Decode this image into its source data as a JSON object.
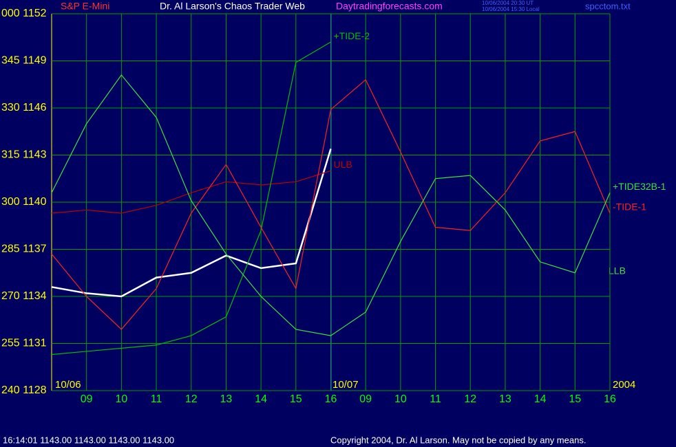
{
  "chart_data": {
    "type": "line",
    "title": "Dr. Al Larson's Chaos Trader Web",
    "subtitle": "S&P E-Mini",
    "site": "Daytradingforecasts.com",
    "timestamps": [
      "10/06/2004 20:30 UT",
      "10/06/2004 15:30 Local"
    ],
    "file": "spcctom.txt",
    "date_labels": [
      "10/06",
      "10/07",
      "2004"
    ],
    "annotations": [
      "LLB"
    ],
    "status": "16:14:01  1143.00 1143.00 1143.00 1143.00",
    "copyright": "Copyright 2004, Dr. Al Larson. May not be copied by any means.",
    "x": [
      0,
      1,
      2,
      3,
      4,
      5,
      6,
      7,
      8,
      9,
      10,
      11,
      12,
      13,
      14,
      15,
      16
    ],
    "xlim": [
      0,
      16
    ],
    "xticks": [
      {
        "value": 1,
        "label": "09"
      },
      {
        "value": 2,
        "label": "10"
      },
      {
        "value": 3,
        "label": "11"
      },
      {
        "value": 4,
        "label": "12"
      },
      {
        "value": 5,
        "label": "13"
      },
      {
        "value": 6,
        "label": "14"
      },
      {
        "value": 7,
        "label": "15"
      },
      {
        "value": 8,
        "label": "16"
      },
      {
        "value": 9,
        "label": "09"
      },
      {
        "value": 10,
        "label": "10"
      },
      {
        "value": 11,
        "label": "11"
      },
      {
        "value": 12,
        "label": "12"
      },
      {
        "value": 13,
        "label": "13"
      },
      {
        "value": 14,
        "label": "14"
      },
      {
        "value": 15,
        "label": "15"
      },
      {
        "value": 16,
        "label": "16"
      }
    ],
    "ylim": [
      1128,
      1152
    ],
    "yticks": [
      {
        "value": 1128,
        "label": "240 1128"
      },
      {
        "value": 1131,
        "label": "255 1131"
      },
      {
        "value": 1134,
        "label": "270 1134"
      },
      {
        "value": 1137,
        "label": "285 1137"
      },
      {
        "value": 1140,
        "label": "300 1140"
      },
      {
        "value": 1143,
        "label": "315 1143"
      },
      {
        "value": 1146,
        "label": "330 1146"
      },
      {
        "value": 1149,
        "label": "345 1149"
      },
      {
        "value": 1152,
        "label": "000 1152"
      }
    ],
    "grid": true,
    "series": [
      {
        "color": "#ffffff",
        "values": [
          1134.6,
          1134.2,
          1134,
          1135.2,
          1135.5,
          1136.6,
          1135.8,
          1136.1,
          1143.4,
          null,
          null,
          null,
          null,
          null,
          null,
          null,
          null
        ]
      },
      {
        "name": "ULB",
        "color": "#c00000",
        "values": [
          1139.3,
          1139.5,
          1139.3,
          1139.8,
          1140.6,
          1141.3,
          1141.1,
          1141.3,
          1142,
          null,
          null,
          null,
          null,
          null,
          null,
          null,
          null
        ]
      },
      {
        "name": "+TIDE-2",
        "color": "#00c000",
        "values": [
          1130.3,
          1130.5,
          1130.7,
          1130.9,
          1131.5,
          1132.7,
          1138.2,
          1148.9,
          1150.2,
          null,
          null,
          null,
          null,
          null,
          null,
          null,
          null
        ]
      },
      {
        "name": "-TIDE-1",
        "color": "#ff2020",
        "values": [
          1136.7,
          1134,
          1131.9,
          1134.5,
          1139.3,
          1142.4,
          1138.4,
          1134.5,
          1145.9,
          1147.8,
          1143.2,
          1138.4,
          1138.2,
          1140.6,
          1143.9,
          1144.5,
          1139.3
        ]
      },
      {
        "name": "+TIDE32B-1",
        "color": "#40e040",
        "values": [
          1140.6,
          1145,
          1148.1,
          1145.4,
          1140.1,
          1136.7,
          1134,
          1131.9,
          1131.5,
          1133,
          1137.5,
          1141.5,
          1141.7,
          1139.5,
          1136.2,
          1135.5,
          1140.6
        ]
      }
    ]
  }
}
